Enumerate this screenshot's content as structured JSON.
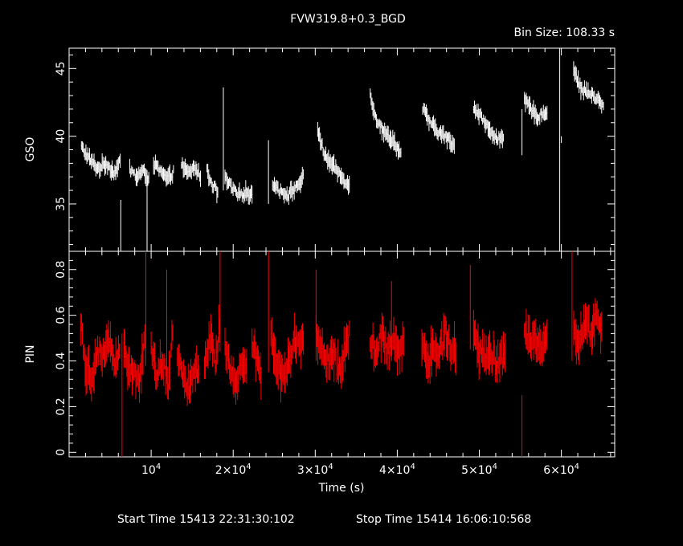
{
  "header": {
    "title": "FVW319.8+0.3_BGD",
    "bin_size": "Bin Size: 108.33 s"
  },
  "footer": {
    "start_time": "Start Time 15413 22:31:30:102",
    "stop_time": "Stop Time 15414 16:06:10:568"
  },
  "chart_data": [
    {
      "type": "line",
      "panel": "top",
      "ylabel": "GSO",
      "xlabel": "",
      "xlim": [
        0,
        66500
      ],
      "ylim": [
        31.5,
        46.5
      ],
      "yticks": [
        35,
        40,
        45
      ],
      "color": "#ffffff",
      "segments": [
        {
          "x": [
            1500,
            2500,
            3500,
            4500,
            5500,
            6300
          ],
          "y": [
            39.2,
            38.3,
            37.6,
            38.0,
            37.3,
            38.2
          ]
        },
        {
          "x": [
            7400,
            8200,
            9000,
            9800
          ],
          "y": [
            37.6,
            37.0,
            37.4,
            36.8
          ]
        },
        {
          "x": [
            10300,
            11200,
            12000,
            12800
          ],
          "y": [
            38.0,
            37.3,
            36.8,
            37.4
          ]
        },
        {
          "x": [
            13700,
            14500,
            15300,
            16100
          ],
          "y": [
            37.9,
            37.2,
            37.7,
            37.0
          ]
        },
        {
          "x": [
            16800,
            17500,
            18200
          ],
          "y": [
            37.4,
            36.4,
            35.7
          ]
        },
        {
          "x": [
            19000,
            19800,
            20600,
            21400,
            22400
          ],
          "y": [
            36.9,
            36.2,
            35.6,
            35.9,
            35.6
          ]
        },
        {
          "x": [
            24800,
            25800,
            26800,
            27900,
            28600
          ],
          "y": [
            36.6,
            35.9,
            35.7,
            36.4,
            37.0
          ]
        },
        {
          "x": [
            30300,
            31200,
            32200,
            33200,
            34200
          ],
          "y": [
            40.5,
            38.5,
            37.8,
            37.0,
            36.4
          ]
        },
        {
          "x": [
            36700,
            37500,
            38500,
            39500,
            40500
          ],
          "y": [
            43.0,
            41.2,
            40.2,
            39.7,
            38.6
          ]
        },
        {
          "x": [
            43100,
            44000,
            45000,
            46000,
            47000
          ],
          "y": [
            42.0,
            41.0,
            40.3,
            39.9,
            39.2
          ]
        },
        {
          "x": [
            49300,
            50200,
            51200,
            52200,
            53000
          ],
          "y": [
            42.2,
            41.5,
            40.4,
            39.9,
            39.6
          ]
        },
        {
          "x": [
            55500,
            56300,
            57200,
            58300
          ],
          "y": [
            42.7,
            42.0,
            41.4,
            41.9
          ]
        },
        {
          "x": [
            61500,
            62300,
            63300,
            64300,
            65200
          ],
          "y": [
            45.0,
            43.6,
            43.2,
            42.8,
            42.1
          ]
        }
      ],
      "spikes": [
        {
          "x": 6300,
          "low": 31.5,
          "high": 35.3
        },
        {
          "x": 9500,
          "low": 31.5,
          "high": 37.5
        },
        {
          "x": 18800,
          "low": 36.0,
          "high": 43.6
        },
        {
          "x": 24300,
          "low": 35.0,
          "high": 39.7
        },
        {
          "x": 55200,
          "low": 38.6,
          "high": 42.0
        },
        {
          "x": 59800,
          "low": 31.5,
          "high": 46.5
        },
        {
          "x": 60000,
          "low": 39.5,
          "high": 40.0
        }
      ]
    },
    {
      "type": "line",
      "panel": "bottom",
      "ylabel": "PIN",
      "xlabel": "Time (s)",
      "xlim": [
        0,
        66500
      ],
      "ylim": [
        -0.02,
        0.88
      ],
      "yticks": [
        0,
        0.2,
        0.4,
        0.6,
        0.8
      ],
      "ytick_labels": [
        "0",
        "0.2",
        "0.4",
        "0.6",
        "0.8"
      ],
      "xticks": [
        10000,
        20000,
        30000,
        40000,
        50000,
        60000
      ],
      "xtick_labels": [
        {
          "base": "10",
          "exp": "4"
        },
        {
          "base": "2×10",
          "exp": "4"
        },
        {
          "base": "3×10",
          "exp": "4"
        },
        {
          "base": "4×10",
          "exp": "4"
        },
        {
          "base": "5×10",
          "exp": "4"
        },
        {
          "base": "6×10",
          "exp": "4"
        }
      ],
      "color": "#ff0000",
      "segments": [
        {
          "x": [
            1400,
            2000,
            2700,
            3400,
            4100,
            4800,
            5500,
            6200
          ],
          "y": [
            0.58,
            0.38,
            0.33,
            0.45,
            0.41,
            0.52,
            0.36,
            0.45
          ]
        },
        {
          "x": [
            6700,
            7300,
            7900,
            8600,
            9300
          ],
          "y": [
            0.48,
            0.33,
            0.38,
            0.3,
            0.55
          ]
        },
        {
          "x": [
            10000,
            10700,
            11400,
            12100,
            12700
          ],
          "y": [
            0.44,
            0.35,
            0.4,
            0.3,
            0.56
          ]
        },
        {
          "x": [
            13200,
            13900,
            14600,
            15300,
            15900
          ],
          "y": [
            0.44,
            0.34,
            0.28,
            0.37,
            0.33
          ]
        },
        {
          "x": [
            16500,
            17100,
            17800,
            18400
          ],
          "y": [
            0.4,
            0.5,
            0.4,
            0.58
          ]
        },
        {
          "x": [
            19000,
            19700,
            20300,
            21000,
            21700
          ],
          "y": [
            0.44,
            0.38,
            0.28,
            0.38,
            0.4
          ]
        },
        {
          "x": [
            22300,
            22900,
            23500
          ],
          "y": [
            0.48,
            0.42,
            0.33
          ]
        },
        {
          "x": [
            24600,
            25300,
            26000,
            26700,
            27400,
            28100,
            28600
          ],
          "y": [
            0.5,
            0.4,
            0.32,
            0.4,
            0.49,
            0.5,
            0.46
          ]
        },
        {
          "x": [
            30100,
            30800,
            31500,
            32200,
            32900,
            33600,
            34200
          ],
          "y": [
            0.52,
            0.46,
            0.39,
            0.43,
            0.36,
            0.44,
            0.51
          ]
        },
        {
          "x": [
            36700,
            37400,
            38100,
            38800,
            39500,
            40200,
            40800
          ],
          "y": [
            0.49,
            0.45,
            0.51,
            0.45,
            0.52,
            0.44,
            0.48
          ]
        },
        {
          "x": [
            43000,
            43700,
            44400,
            45100,
            45800,
            46500,
            47200
          ],
          "y": [
            0.48,
            0.4,
            0.47,
            0.43,
            0.52,
            0.47,
            0.44
          ]
        },
        {
          "x": [
            49300,
            50000,
            50700,
            51400,
            52100,
            52700,
            53200
          ],
          "y": [
            0.51,
            0.44,
            0.4,
            0.45,
            0.38,
            0.41,
            0.43
          ]
        },
        {
          "x": [
            55500,
            56200,
            56900,
            57600,
            58300
          ],
          "y": [
            0.55,
            0.46,
            0.49,
            0.42,
            0.5
          ]
        },
        {
          "x": [
            61500,
            62200,
            62900,
            63600,
            64300,
            65000
          ],
          "y": [
            0.52,
            0.49,
            0.57,
            0.52,
            0.6,
            0.51
          ]
        }
      ],
      "spikes": [
        {
          "x": 6450,
          "low": -0.02,
          "high": 0.52
        },
        {
          "x": 9350,
          "low": 0.38,
          "high": 0.88
        },
        {
          "x": 11900,
          "low": 0.3,
          "high": 0.8
        },
        {
          "x": 18400,
          "low": 0.44,
          "high": 0.88
        },
        {
          "x": 24300,
          "low": 0.35,
          "high": 0.88
        },
        {
          "x": 30100,
          "low": 0.4,
          "high": 0.8
        },
        {
          "x": 39300,
          "low": 0.4,
          "high": 0.75
        },
        {
          "x": 48900,
          "low": 0.45,
          "high": 0.82
        },
        {
          "x": 55200,
          "low": -0.02,
          "high": 0.25
        },
        {
          "x": 61300,
          "low": 0.4,
          "high": 0.88
        }
      ]
    }
  ]
}
